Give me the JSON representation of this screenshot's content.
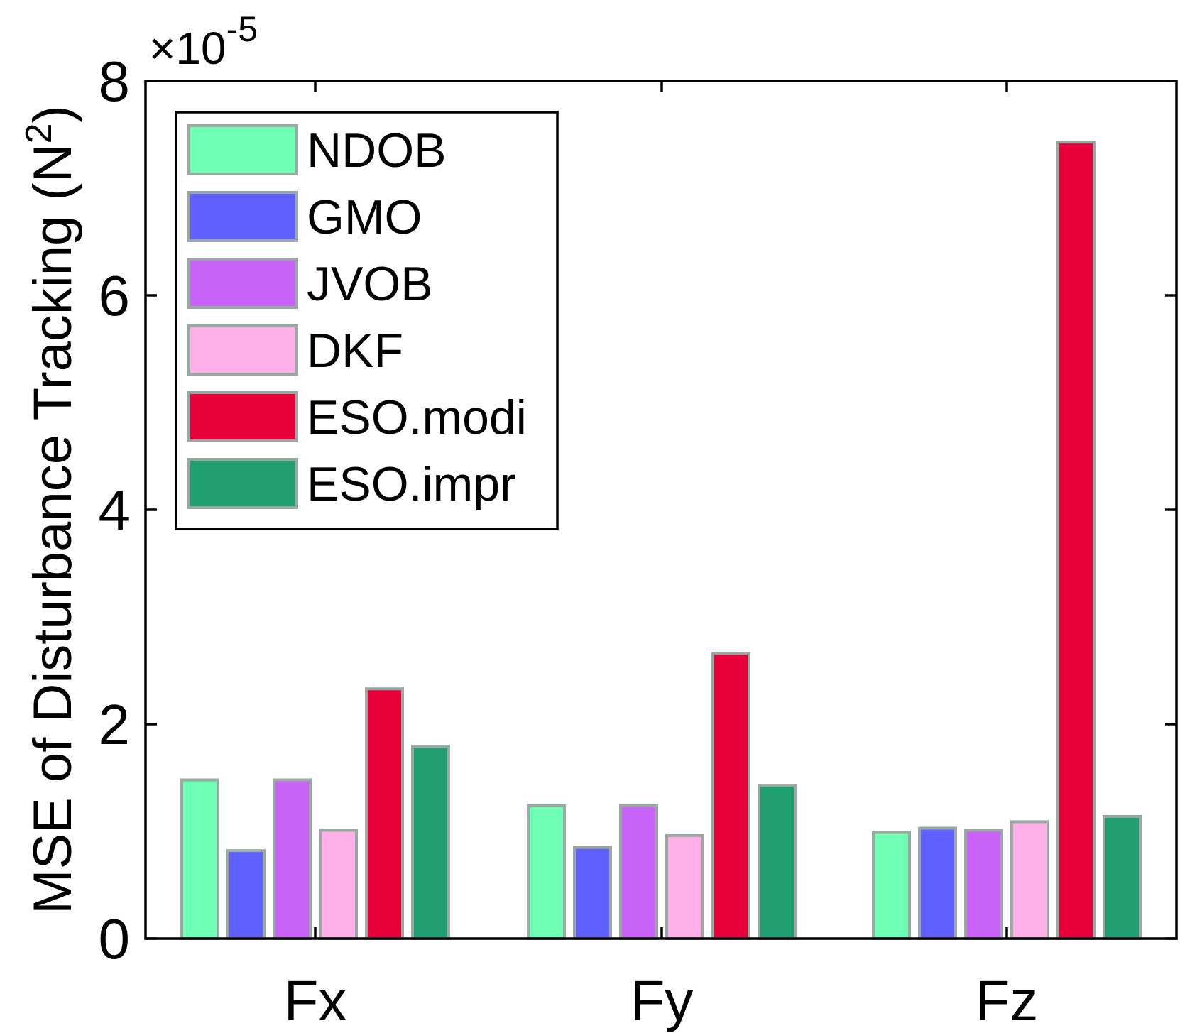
{
  "chart_data": {
    "type": "bar",
    "categories": [
      "Fx",
      "Fy",
      "Fz"
    ],
    "series": [
      {
        "name": "NDOB",
        "color": "#6fffb4",
        "values": [
          1.48,
          1.24,
          0.99
        ]
      },
      {
        "name": "GMO",
        "color": "#6060ff",
        "values": [
          0.82,
          0.85,
          1.03
        ]
      },
      {
        "name": "JVOB",
        "color": "#c862f8",
        "values": [
          1.48,
          1.24,
          1.01
        ]
      },
      {
        "name": "DKF",
        "color": "#ffb0e8",
        "values": [
          1.01,
          0.96,
          1.09
        ]
      },
      {
        "name": "ESO.modi",
        "color": "#e8003a",
        "values": [
          2.33,
          2.66,
          7.43
        ]
      },
      {
        "name": "ESO.impr",
        "color": "#20a070",
        "values": [
          1.79,
          1.43,
          1.14
        ]
      }
    ],
    "ylabel_text": "MSE of Disturbance Tracking (N",
    "ylabel_sup": "2",
    "ylabel_close": ")",
    "y_multiplier_base": "×10",
    "y_multiplier_exp": "-5",
    "ylim": [
      0,
      8
    ],
    "yticks": [
      0,
      2,
      4,
      6,
      8
    ],
    "ytick_labels": [
      "0",
      "2",
      "4",
      "6",
      "8"
    ],
    "bar_edge_color": "#9aa8a2",
    "grid": false,
    "legend_position": "top-left"
  }
}
